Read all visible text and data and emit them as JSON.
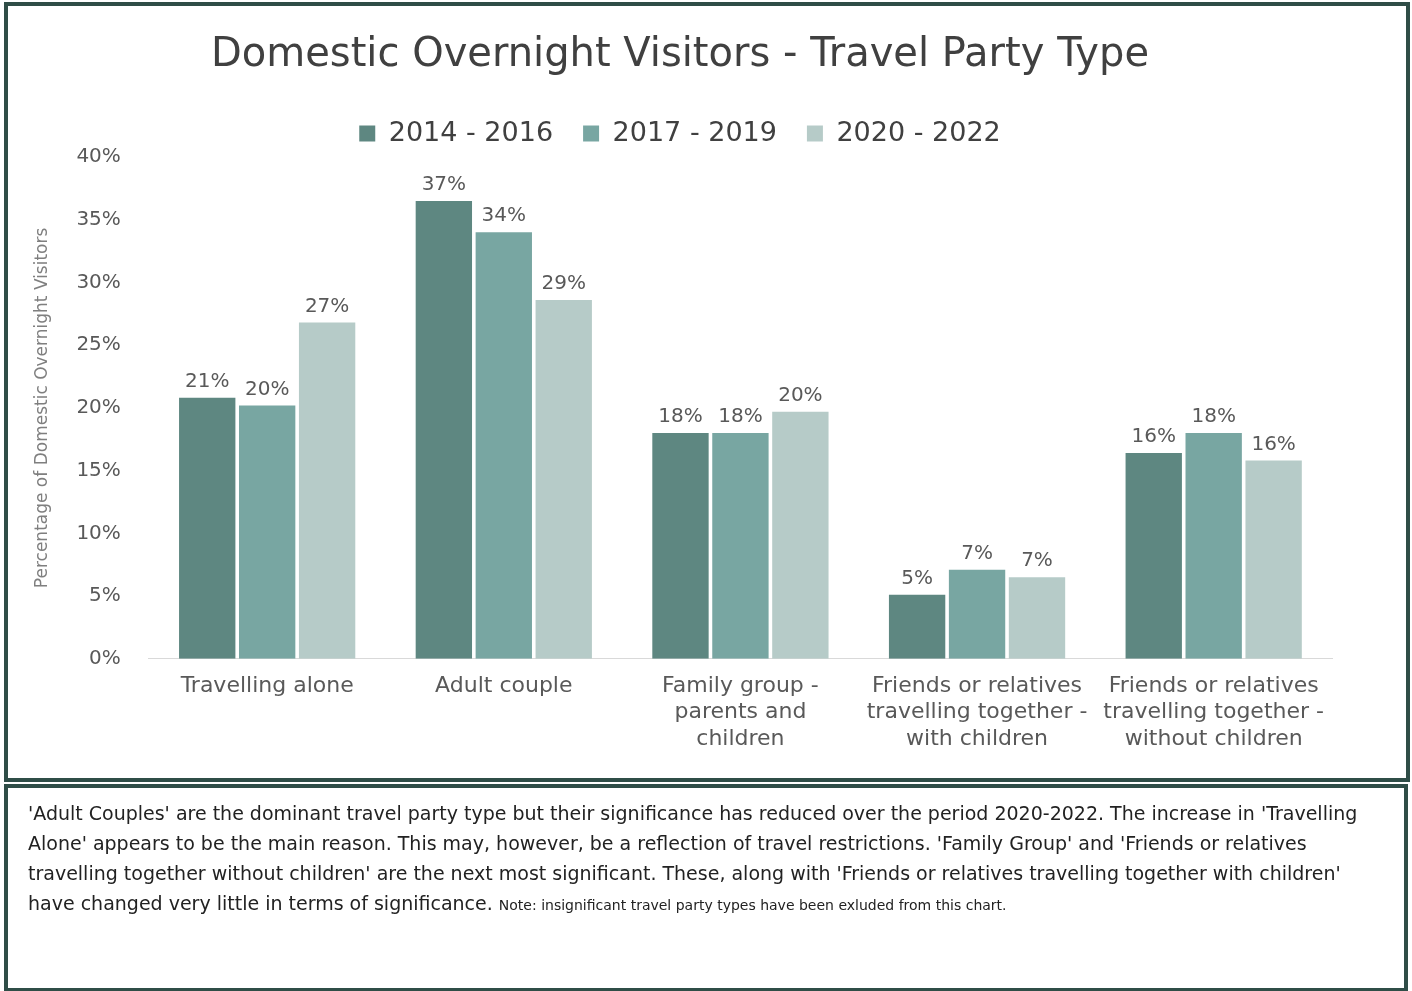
{
  "chart_data": {
    "type": "bar",
    "title": "Domestic Overnight Visitors - Travel Party Type",
    "ylabel": "Percentage of Domestic Overnight Visitors",
    "categories": [
      "Travelling alone",
      "Adult couple",
      "Family group - parents and children",
      "Friends or relatives travelling together - with children",
      "Friends or relatives travelling together - without children"
    ],
    "series": [
      {
        "name": "2014 - 2016",
        "color": "#5e8781",
        "values": [
          20.8,
          36.5,
          18,
          5.1,
          16.4
        ],
        "value_labels": [
          "21%",
          "37%",
          "18%",
          "5%",
          "16%"
        ]
      },
      {
        "name": "2017 - 2019",
        "color": "#78a6a2",
        "values": [
          20.2,
          34,
          18,
          7.1,
          18
        ],
        "value_labels": [
          "20%",
          "34%",
          "18%",
          "7%",
          "18%"
        ]
      },
      {
        "name": "2020 - 2022",
        "color": "#b6cbc8",
        "values": [
          26.8,
          28.6,
          19.7,
          6.5,
          15.8
        ],
        "value_labels": [
          "27%",
          "29%",
          "20%",
          "7%",
          "16%"
        ]
      }
    ],
    "ylim": [
      0,
      40
    ],
    "yticks": [
      {
        "value": 0,
        "label": "0%"
      },
      {
        "value": 5,
        "label": "5%"
      },
      {
        "value": 10,
        "label": "10%"
      },
      {
        "value": 15,
        "label": "15%"
      },
      {
        "value": 20,
        "label": "20%"
      },
      {
        "value": 25,
        "label": "25%"
      },
      {
        "value": 30,
        "label": "30%"
      },
      {
        "value": 35,
        "label": "35%"
      },
      {
        "value": 40,
        "label": "40%"
      }
    ],
    "grid": false,
    "legend": "top",
    "annotations": [
      "'Adult Couples' are the dominant travel party type but their significance has reduced over the period 2020-2022. The increase in 'Travelling Alone' appears to be the main reason. This may, however, be a reflection of travel restrictions. 'Family Group' and 'Friends or relatives travelling together without children' are the next most significant. These, along with 'Friends or relatives travelling together with children'  have changed very little in terms of significance.",
      "Note: insignificant travel party types have been exluded from this chart."
    ]
  }
}
